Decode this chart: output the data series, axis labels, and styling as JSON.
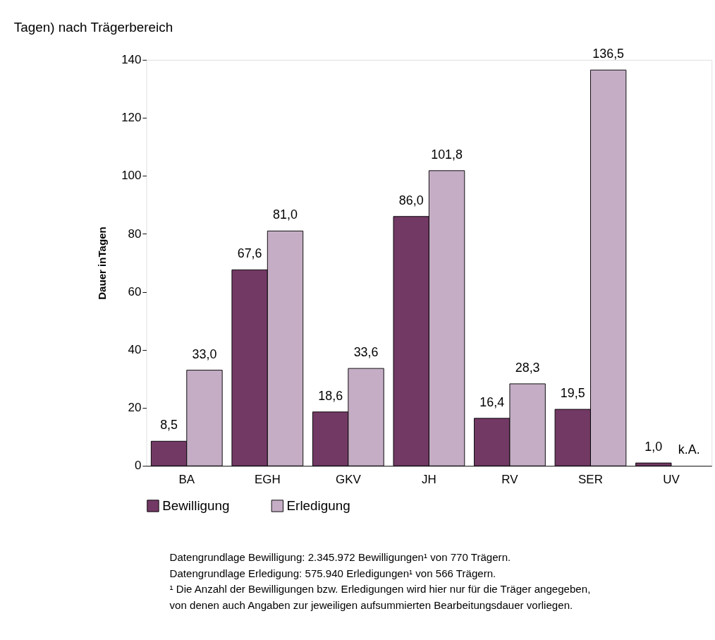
{
  "chart_data": {
    "type": "bar",
    "title": "Tagen) nach Trägerbereich",
    "ylabel": "Dauer inTagen",
    "categories": [
      "BA",
      "EGH",
      "GKV",
      "JH",
      "RV",
      "SER",
      "UV"
    ],
    "series": [
      {
        "name": "Bewilligung",
        "color": "#733965",
        "values": [
          8.5,
          67.6,
          18.6,
          86.0,
          16.4,
          19.5,
          1.0
        ],
        "value_labels": [
          "8,5",
          "67,6",
          "18,6",
          "86,0",
          "16,4",
          "19,5",
          "1,0"
        ]
      },
      {
        "name": "Erledigung",
        "color": "#c5aec5",
        "values": [
          33.0,
          81.0,
          33.6,
          101.8,
          28.3,
          136.5,
          null
        ],
        "value_labels": [
          "33,0",
          "81,0",
          "33,6",
          "101,8",
          "28,3",
          "136,5",
          "k.A."
        ]
      }
    ],
    "ylim": [
      0,
      140
    ],
    "yticks": [
      0,
      20,
      40,
      60,
      80,
      100,
      120,
      140
    ],
    "grid": false,
    "legend": "bottom",
    "annotations": [
      "Datengrundlage Bewilligung: 2.345.972 Bewilligungen¹ von 770 Trägern.",
      "Datengrundlage Erledigung: 575.940 Erledigungen¹ von 566 Trägern.",
      "¹ Die Anzahl der Bewilligungen bzw. Erledigungen wird hier nur für die Träger angegeben,",
      "von denen auch Angaben zur jeweiligen aufsummierten Bearbeitungsdauer vorliegen."
    ]
  }
}
